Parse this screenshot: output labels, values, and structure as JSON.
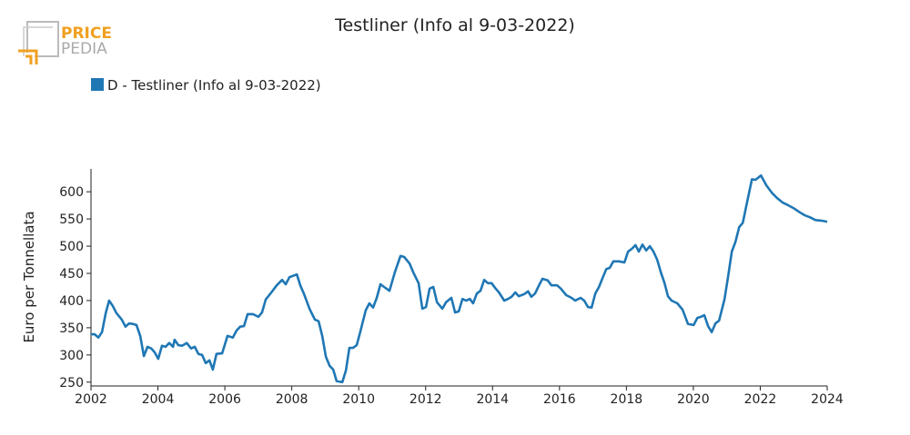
{
  "logo": {
    "line1": "PRICE",
    "line2": "PEDIA"
  },
  "chart_data": {
    "type": "line",
    "title": "Testliner (Info al 9-03-2022)",
    "ylabel": "Euro per Tonnellata",
    "x": [
      2002.0,
      2002.11,
      2002.22,
      2002.33,
      2002.44,
      2002.54,
      2002.65,
      2002.76,
      2002.92,
      2003.03,
      2003.14,
      2003.25,
      2003.36,
      2003.47,
      2003.58,
      2003.69,
      2003.8,
      2003.9,
      2004.01,
      2004.12,
      2004.23,
      2004.34,
      2004.45,
      2004.5,
      2004.61,
      2004.72,
      2004.86,
      2004.99,
      2005.1,
      2005.21,
      2005.32,
      2005.43,
      2005.54,
      2005.64,
      2005.75,
      2005.92,
      2006.08,
      2006.24,
      2006.35,
      2006.46,
      2006.57,
      2006.68,
      2006.84,
      2007.0,
      2007.11,
      2007.22,
      2007.39,
      2007.55,
      2007.71,
      2007.82,
      2007.93,
      2008.15,
      2008.26,
      2008.36,
      2008.53,
      2008.69,
      2008.8,
      2008.91,
      2009.02,
      2009.13,
      2009.24,
      2009.34,
      2009.51,
      2009.62,
      2009.72,
      2009.83,
      2009.94,
      2010.05,
      2010.21,
      2010.32,
      2010.43,
      2010.54,
      2010.65,
      2010.76,
      2010.92,
      2011.08,
      2011.25,
      2011.36,
      2011.52,
      2011.63,
      2011.79,
      2011.9,
      2012.01,
      2012.12,
      2012.23,
      2012.34,
      2012.5,
      2012.61,
      2012.77,
      2012.88,
      2012.99,
      2013.1,
      2013.21,
      2013.32,
      2013.42,
      2013.53,
      2013.64,
      2013.75,
      2013.86,
      2013.97,
      2014.08,
      2014.19,
      2014.35,
      2014.46,
      2014.57,
      2014.68,
      2014.78,
      2014.95,
      2015.06,
      2015.16,
      2015.27,
      2015.38,
      2015.49,
      2015.65,
      2015.76,
      2015.93,
      2016.04,
      2016.2,
      2016.36,
      2016.47,
      2016.63,
      2016.74,
      2016.85,
      2016.96,
      2017.07,
      2017.18,
      2017.29,
      2017.4,
      2017.5,
      2017.61,
      2017.78,
      2017.94,
      2018.05,
      2018.16,
      2018.27,
      2018.37,
      2018.48,
      2018.59,
      2018.7,
      2018.81,
      2018.92,
      2019.03,
      2019.14,
      2019.24,
      2019.35,
      2019.52,
      2019.68,
      2019.84,
      2020.01,
      2020.12,
      2020.22,
      2020.33,
      2020.44,
      2020.55,
      2020.66,
      2020.77,
      2020.93,
      2021.04,
      2021.15,
      2021.26,
      2021.37,
      2021.48,
      2021.58,
      2021.75,
      2021.86,
      2022.02,
      2022.18,
      2022.35,
      2022.51,
      2022.67,
      2022.84,
      2022.99,
      2023.16,
      2023.32,
      2023.49,
      2023.65,
      2023.81,
      2024.0
    ],
    "series": [
      {
        "name": "D - Testliner (Info al 9-03-2022)",
        "color": "#1f77b4",
        "values": [
          338,
          338,
          332,
          342,
          377,
          400,
          390,
          377,
          365,
          352,
          358,
          357,
          355,
          335,
          298,
          315,
          312,
          305,
          293,
          317,
          315,
          322,
          315,
          328,
          318,
          317,
          322,
          312,
          315,
          302,
          300,
          285,
          290,
          273,
          302,
          303,
          335,
          332,
          345,
          352,
          353,
          375,
          375,
          370,
          378,
          402,
          415,
          428,
          438,
          430,
          443,
          448,
          427,
          413,
          385,
          365,
          362,
          335,
          297,
          280,
          273,
          252,
          250,
          272,
          313,
          313,
          318,
          343,
          382,
          395,
          387,
          405,
          430,
          425,
          418,
          452,
          482,
          480,
          468,
          452,
          432,
          385,
          388,
          422,
          425,
          397,
          385,
          397,
          405,
          378,
          380,
          403,
          400,
          403,
          395,
          413,
          418,
          438,
          432,
          432,
          423,
          415,
          400,
          403,
          407,
          415,
          408,
          412,
          417,
          407,
          413,
          427,
          440,
          437,
          428,
          428,
          422,
          410,
          405,
          400,
          405,
          400,
          388,
          387,
          413,
          425,
          442,
          458,
          460,
          472,
          472,
          470,
          490,
          495,
          502,
          490,
          503,
          492,
          500,
          490,
          475,
          452,
          432,
          408,
          400,
          395,
          383,
          357,
          355,
          368,
          370,
          373,
          353,
          342,
          358,
          363,
          402,
          445,
          490,
          508,
          535,
          543,
          573,
          623,
          622,
          630,
          612,
          598,
          588,
          580,
          575,
          570,
          563,
          557,
          553,
          548,
          547,
          545
        ]
      }
    ],
    "xlim": [
      2002,
      2024
    ],
    "xticks": [
      2002,
      2004,
      2006,
      2008,
      2010,
      2012,
      2014,
      2016,
      2018,
      2020,
      2022,
      2024
    ],
    "ylim": [
      243,
      642
    ],
    "yticks": [
      250,
      300,
      350,
      400,
      450,
      500,
      550,
      600
    ],
    "grid": false
  }
}
